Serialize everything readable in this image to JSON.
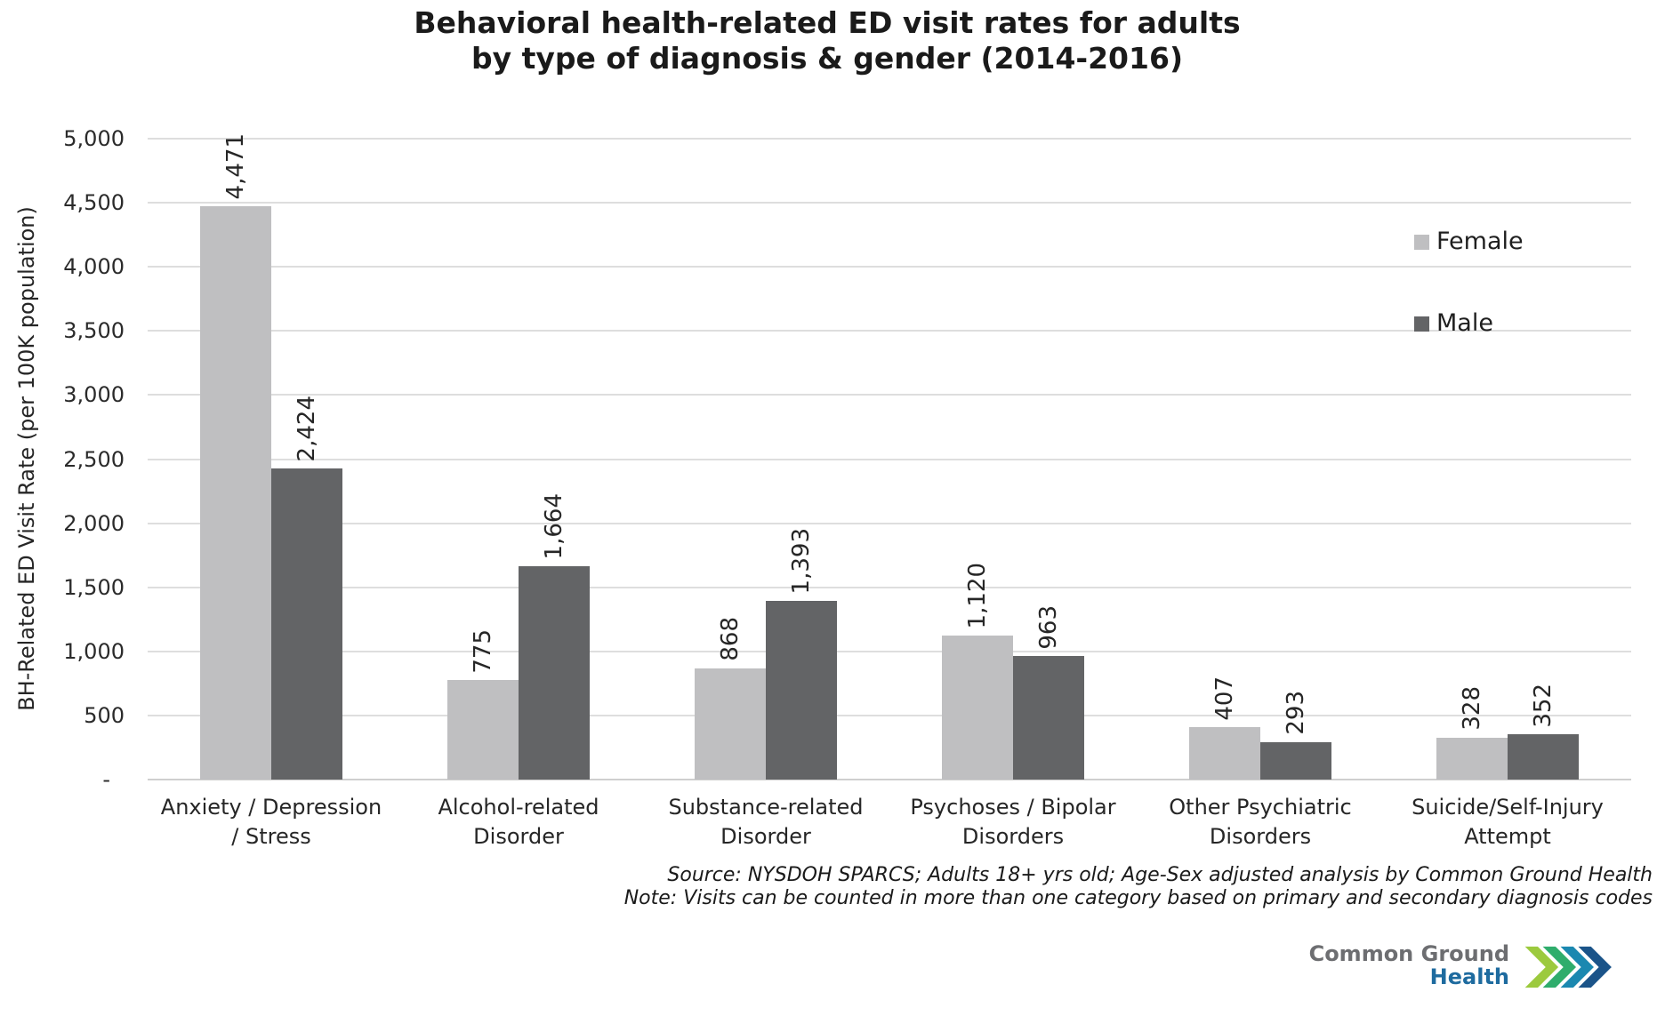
{
  "title": {
    "line1": "Behavioral health-related ED visit rates for adults",
    "line2": "by type of diagnosis & gender (2014-2016)"
  },
  "chart_data": {
    "type": "bar",
    "title": "Behavioral health-related ED visit rates for adults by type of diagnosis & gender (2014-2016)",
    "xlabel": "",
    "ylabel": "BH-Related ED Visit Rate (per 100K population)",
    "ylim": [
      0,
      5000
    ],
    "ytick_step": 500,
    "ytick_labels": [
      "-",
      "500",
      "1,000",
      "1,500",
      "2,000",
      "2,500",
      "3,000",
      "3,500",
      "4,000",
      "4,500",
      "5,000"
    ],
    "grid": true,
    "legend_position": "inside-right",
    "categories": [
      "Anxiety / Depression / Stress",
      "Alcohol-related Disorder",
      "Substance-related Disorder",
      "Psychoses / Bipolar Disorders",
      "Other Psychiatric Disorders",
      "Suicide/Self-Injury Attempt"
    ],
    "category_label_lines": [
      [
        "Anxiety / Depression",
        "/ Stress"
      ],
      [
        "Alcohol-related",
        "Disorder"
      ],
      [
        "Substance-related",
        "Disorder"
      ],
      [
        "Psychoses / Bipolar",
        "Disorders"
      ],
      [
        "Other Psychiatric",
        "Disorders"
      ],
      [
        "Suicide/Self-Injury",
        "Attempt"
      ]
    ],
    "series": [
      {
        "name": "Female",
        "color": "#bfbfc1",
        "values": [
          4471,
          775,
          868,
          1120,
          407,
          328
        ],
        "labels": [
          "4,471",
          "775",
          "868",
          "1,120",
          "407",
          "328"
        ]
      },
      {
        "name": "Male",
        "color": "#636466",
        "values": [
          2424,
          1664,
          1393,
          963,
          293,
          352
        ],
        "labels": [
          "2,424",
          "1,664",
          "1,393",
          "963",
          "293",
          "352"
        ]
      }
    ]
  },
  "notes": {
    "line1": "Source: NYSDOH SPARCS; Adults 18+ yrs old; Age-Sex adjusted analysis by Common Ground Health",
    "line2": "Note: Visits can be counted in more than one category based on primary and secondary diagnosis codes"
  },
  "logo": {
    "line1": "Common Ground",
    "line2": "Health",
    "text_color": "#6d6e71",
    "health_color": "#1e6b9f",
    "chevron_colors": [
      "#9cca3e",
      "#2fad6c",
      "#1b88b0",
      "#1b5489"
    ]
  }
}
